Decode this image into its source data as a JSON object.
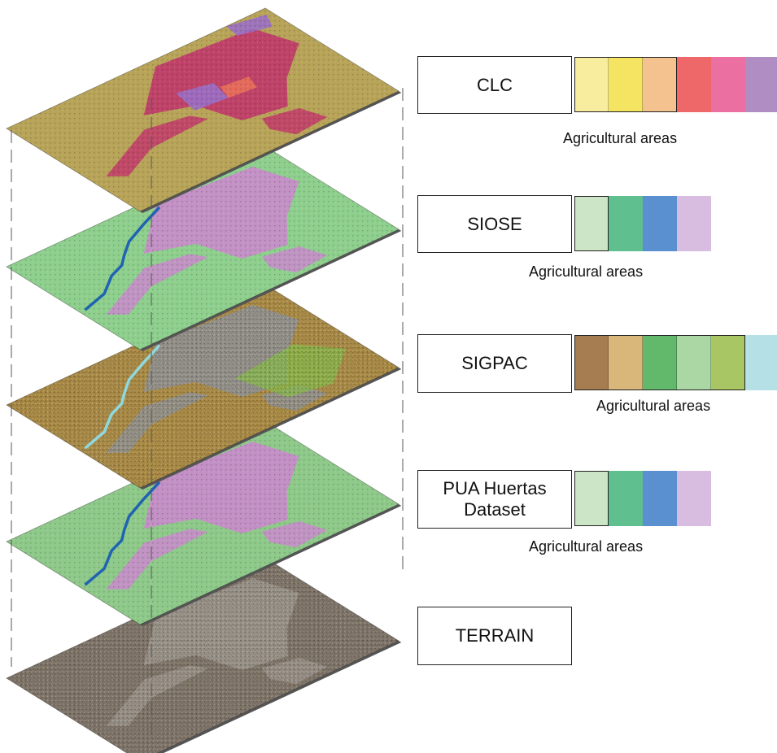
{
  "layers": [
    {
      "id": "clc",
      "label": "CLC",
      "swatches": [
        "#f8ec9e",
        "#f4e461",
        "#f3c28e",
        "#ef6869",
        "#ec6fa2",
        "#b08ec4"
      ],
      "agricultural_count": 3,
      "caption": "Agricultural areas",
      "map": {
        "base": "#b8a459",
        "urban": "#c0396a",
        "urban2": "#9a6fc4",
        "extra": "#e8705a"
      }
    },
    {
      "id": "siose",
      "label": "SIOSE",
      "swatches": [
        "#cde5c7",
        "#5fbf8e",
        "#5a90cf",
        "#d8bde0"
      ],
      "agricultural_count": 1,
      "caption": "Agricultural areas",
      "map": {
        "base": "#8ecf8e",
        "urban": "#c98acb",
        "river": "#1f63b2"
      }
    },
    {
      "id": "sigpac",
      "label": "SIGPAC",
      "swatches": [
        "#a67c51",
        "#d9b77a",
        "#62b96b",
        "#aad7a3",
        "#a8c663",
        "#b5e0e6"
      ],
      "agricultural_count": 5,
      "caption": "Agricultural areas",
      "map": {
        "base": "#a98a45",
        "urban": "#8f8f8f",
        "green": "#86b84a",
        "river": "#8fd8df"
      }
    },
    {
      "id": "pua",
      "label": "PUA Huertas\nDataset",
      "swatches": [
        "#cde5c7",
        "#5fbf8e",
        "#5a90cf",
        "#d8bde0"
      ],
      "agricultural_count": 1,
      "caption": "Agricultural areas",
      "map": {
        "base": "#8ec98a",
        "urban": "#c98acb",
        "river": "#1f63b2"
      }
    },
    {
      "id": "terrain",
      "label": "TERRAIN",
      "swatches": [],
      "agricultural_count": 0,
      "caption": "",
      "map": {
        "base": "#7f7468",
        "urban": "#9a938a"
      }
    }
  ]
}
